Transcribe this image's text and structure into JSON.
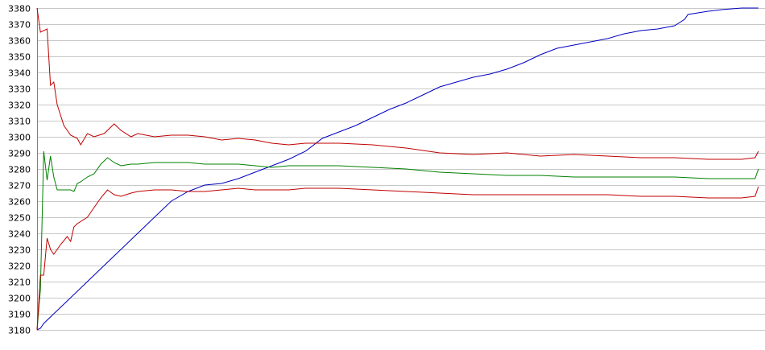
{
  "chart_data": {
    "type": "line",
    "title": "",
    "xlabel": "",
    "ylabel": "",
    "ylim": [
      3180,
      3380
    ],
    "xlim": [
      0,
      216
    ],
    "yticks": [
      3180,
      3190,
      3200,
      3210,
      3220,
      3230,
      3240,
      3250,
      3260,
      3270,
      3280,
      3290,
      3300,
      3310,
      3320,
      3330,
      3340,
      3350,
      3360,
      3370,
      3380
    ],
    "grid": true,
    "legend": "none",
    "series": [
      {
        "color": "#0000c0",
        "points": [
          [
            0,
            3180
          ],
          [
            1,
            3181
          ],
          [
            2,
            3184
          ],
          [
            5,
            3190
          ],
          [
            10,
            3200
          ],
          [
            15,
            3210
          ],
          [
            20,
            3220
          ],
          [
            25,
            3230
          ],
          [
            30,
            3240
          ],
          [
            35,
            3250
          ],
          [
            40,
            3260
          ],
          [
            45,
            3266
          ],
          [
            50,
            3270
          ],
          [
            55,
            3271
          ],
          [
            60,
            3274
          ],
          [
            65,
            3278
          ],
          [
            70,
            3282
          ],
          [
            75,
            3286
          ],
          [
            80,
            3291
          ],
          [
            85,
            3299
          ],
          [
            90,
            3303
          ],
          [
            95,
            3307
          ],
          [
            100,
            3312
          ],
          [
            105,
            3317
          ],
          [
            110,
            3321
          ],
          [
            115,
            3326
          ],
          [
            120,
            3331
          ],
          [
            125,
            3334
          ],
          [
            130,
            3337
          ],
          [
            135,
            3339
          ],
          [
            140,
            3342
          ],
          [
            145,
            3346
          ],
          [
            150,
            3351
          ],
          [
            155,
            3355
          ],
          [
            160,
            3357
          ],
          [
            165,
            3359
          ],
          [
            170,
            3361
          ],
          [
            175,
            3364
          ],
          [
            180,
            3366
          ],
          [
            185,
            3367
          ],
          [
            190,
            3369
          ],
          [
            193,
            3373
          ],
          [
            194,
            3376
          ],
          [
            200,
            3378
          ],
          [
            204,
            3379
          ],
          [
            210,
            3380
          ],
          [
            215,
            3380
          ]
        ]
      },
      {
        "color": "#c00000",
        "points": [
          [
            0,
            3380
          ],
          [
            1,
            3365
          ],
          [
            3,
            3367
          ],
          [
            4,
            3332
          ],
          [
            5,
            3334
          ],
          [
            6,
            3320
          ],
          [
            8,
            3307
          ],
          [
            10,
            3301
          ],
          [
            12,
            3299
          ],
          [
            13,
            3295
          ],
          [
            15,
            3302
          ],
          [
            17,
            3300
          ],
          [
            20,
            3302
          ],
          [
            22,
            3306
          ],
          [
            23,
            3308
          ],
          [
            25,
            3304
          ],
          [
            28,
            3300
          ],
          [
            30,
            3302
          ],
          [
            35,
            3300
          ],
          [
            40,
            3301
          ],
          [
            45,
            3301
          ],
          [
            50,
            3300
          ],
          [
            55,
            3298
          ],
          [
            60,
            3299
          ],
          [
            65,
            3298
          ],
          [
            70,
            3296
          ],
          [
            75,
            3295
          ],
          [
            80,
            3296
          ],
          [
            90,
            3296
          ],
          [
            100,
            3295
          ],
          [
            110,
            3293
          ],
          [
            120,
            3290
          ],
          [
            130,
            3289
          ],
          [
            140,
            3290
          ],
          [
            150,
            3288
          ],
          [
            160,
            3289
          ],
          [
            170,
            3288
          ],
          [
            180,
            3287
          ],
          [
            190,
            3287
          ],
          [
            200,
            3286
          ],
          [
            210,
            3286
          ],
          [
            214,
            3287
          ],
          [
            215,
            3291
          ]
        ]
      },
      {
        "color": "#008000",
        "points": [
          [
            0,
            3180
          ],
          [
            1,
            3205
          ],
          [
            2,
            3291
          ],
          [
            3,
            3273
          ],
          [
            4,
            3288
          ],
          [
            5,
            3275
          ],
          [
            6,
            3267
          ],
          [
            8,
            3267
          ],
          [
            10,
            3267
          ],
          [
            11,
            3266
          ],
          [
            12,
            3271
          ],
          [
            13,
            3272
          ],
          [
            15,
            3275
          ],
          [
            17,
            3277
          ],
          [
            19,
            3283
          ],
          [
            21,
            3287
          ],
          [
            23,
            3284
          ],
          [
            25,
            3282
          ],
          [
            28,
            3283
          ],
          [
            30,
            3283
          ],
          [
            35,
            3284
          ],
          [
            40,
            3284
          ],
          [
            45,
            3284
          ],
          [
            50,
            3283
          ],
          [
            55,
            3283
          ],
          [
            60,
            3283
          ],
          [
            65,
            3282
          ],
          [
            70,
            3281
          ],
          [
            75,
            3282
          ],
          [
            80,
            3282
          ],
          [
            90,
            3282
          ],
          [
            100,
            3281
          ],
          [
            110,
            3280
          ],
          [
            120,
            3278
          ],
          [
            130,
            3277
          ],
          [
            140,
            3276
          ],
          [
            150,
            3276
          ],
          [
            160,
            3275
          ],
          [
            170,
            3275
          ],
          [
            180,
            3275
          ],
          [
            190,
            3275
          ],
          [
            200,
            3274
          ],
          [
            210,
            3274
          ],
          [
            214,
            3274
          ],
          [
            215,
            3280
          ]
        ]
      },
      {
        "color": "#c00000",
        "points": [
          [
            0,
            3180
          ],
          [
            1,
            3214
          ],
          [
            2,
            3214
          ],
          [
            3,
            3237
          ],
          [
            4,
            3230
          ],
          [
            5,
            3227
          ],
          [
            7,
            3233
          ],
          [
            9,
            3238
          ],
          [
            10,
            3235
          ],
          [
            11,
            3244
          ],
          [
            12,
            3246
          ],
          [
            15,
            3250
          ],
          [
            17,
            3256
          ],
          [
            19,
            3262
          ],
          [
            21,
            3267
          ],
          [
            23,
            3264
          ],
          [
            25,
            3263
          ],
          [
            28,
            3265
          ],
          [
            30,
            3266
          ],
          [
            35,
            3267
          ],
          [
            40,
            3267
          ],
          [
            45,
            3266
          ],
          [
            50,
            3266
          ],
          [
            55,
            3267
          ],
          [
            60,
            3268
          ],
          [
            65,
            3267
          ],
          [
            70,
            3267
          ],
          [
            75,
            3267
          ],
          [
            80,
            3268
          ],
          [
            90,
            3268
          ],
          [
            100,
            3267
          ],
          [
            110,
            3266
          ],
          [
            120,
            3265
          ],
          [
            130,
            3264
          ],
          [
            140,
            3264
          ],
          [
            150,
            3264
          ],
          [
            160,
            3264
          ],
          [
            170,
            3264
          ],
          [
            180,
            3263
          ],
          [
            190,
            3263
          ],
          [
            200,
            3262
          ],
          [
            210,
            3262
          ],
          [
            214,
            3263
          ],
          [
            215,
            3269
          ]
        ]
      }
    ]
  }
}
